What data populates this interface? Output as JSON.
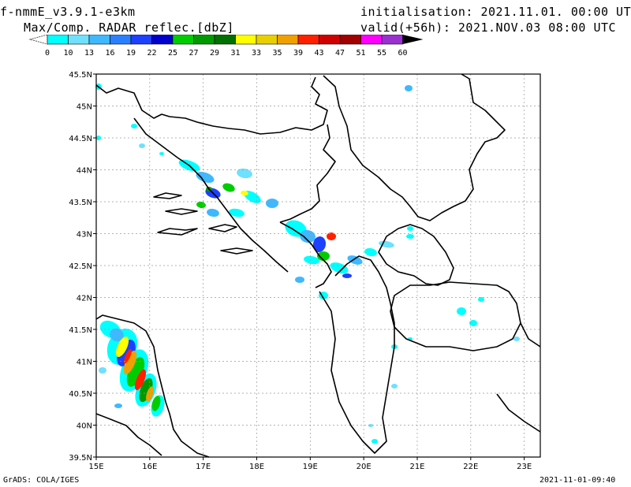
{
  "header": {
    "model": "f-nmmE_v3.9.1-e3km",
    "field": "Max/Comp. RADAR reflec.[dbZ]",
    "init": "initialisation: 2021.11.01. 00:00 UTC",
    "valid": "valid(+56h): 2021.NOV.03 08:00 UTC"
  },
  "colorbar": {
    "labels": [
      "0",
      "10",
      "13",
      "16",
      "19",
      "22",
      "25",
      "27",
      "29",
      "31",
      "33",
      "35",
      "39",
      "43",
      "47",
      "51",
      "55",
      "60"
    ],
    "colors": [
      "#00ffff",
      "#6fe0ff",
      "#3fb8ff",
      "#2a7fff",
      "#1e40ff",
      "#0000cc",
      "#00cc00",
      "#009a00",
      "#007000",
      "#ffff00",
      "#e8d000",
      "#f0a000",
      "#ff2000",
      "#d00000",
      "#a00000",
      "#ff00ff",
      "#9a30d0"
    ]
  },
  "map": {
    "lat_labels": [
      "45.5N",
      "45N",
      "44.5N",
      "44N",
      "43.5N",
      "43N",
      "42.5N",
      "42N",
      "41.5N",
      "41N",
      "40.5N",
      "40N",
      "39.5N"
    ],
    "lon_labels": [
      "15E",
      "16E",
      "17E",
      "18E",
      "19E",
      "20E",
      "21E",
      "22E",
      "23E"
    ],
    "lon_range": [
      15,
      23.3
    ],
    "lat_range": [
      39.5,
      45.5
    ]
  },
  "footer": {
    "left": "GrADS: COLA/IGES",
    "right": "2021-11-01-09:40"
  }
}
